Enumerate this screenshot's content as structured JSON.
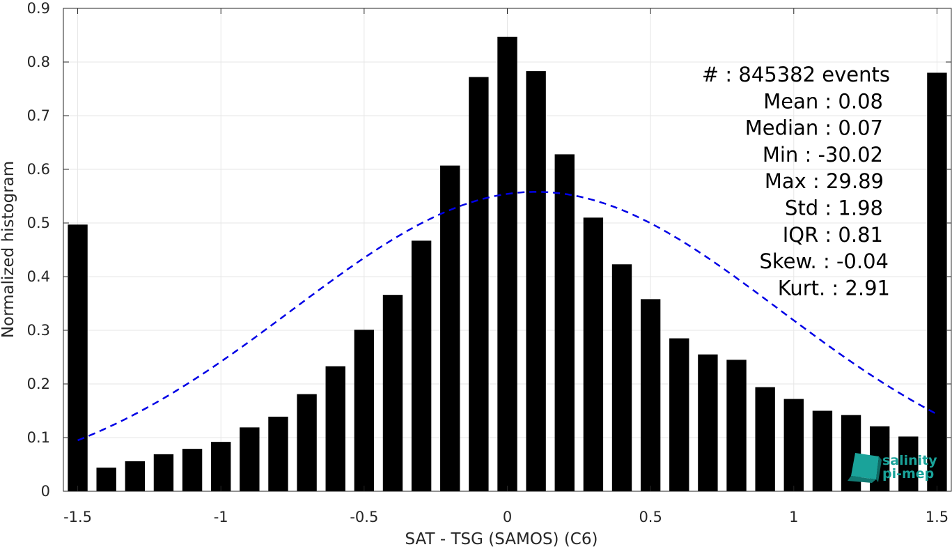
{
  "chart_data": {
    "type": "bar",
    "xlabel": "SAT - TSG (SAMOS) (C6)",
    "ylabel": "Normalized histogram",
    "xlim": [
      -1.55,
      1.55
    ],
    "ylim": [
      0,
      0.9
    ],
    "grid": true,
    "x_ticks": [
      "-1.5",
      "-1",
      "-0.5",
      "0",
      "0.5",
      "1",
      "1.5"
    ],
    "x_tick_values": [
      -1.5,
      -1,
      -0.5,
      0,
      0.5,
      1,
      1.5
    ],
    "y_ticks": [
      "0",
      "0.1",
      "0.2",
      "0.3",
      "0.4",
      "0.5",
      "0.6",
      "0.7",
      "0.8",
      "0.9"
    ],
    "y_tick_values": [
      0,
      0.1,
      0.2,
      0.3,
      0.4,
      0.5,
      0.6,
      0.7,
      0.8,
      0.9
    ],
    "bar_color": "#000000",
    "x": [
      -1.5,
      -1.4,
      -1.3,
      -1.2,
      -1.1,
      -1.0,
      -0.9,
      -0.8,
      -0.7,
      -0.6,
      -0.5,
      -0.4,
      -0.3,
      -0.2,
      -0.1,
      0.0,
      0.1,
      0.2,
      0.3,
      0.4,
      0.5,
      0.6,
      0.7,
      0.8,
      0.9,
      1.0,
      1.1,
      1.2,
      1.3,
      1.4,
      1.5
    ],
    "values": [
      0.497,
      0.044,
      0.056,
      0.069,
      0.079,
      0.092,
      0.119,
      0.139,
      0.181,
      0.233,
      0.301,
      0.366,
      0.467,
      0.607,
      0.772,
      0.847,
      0.783,
      0.628,
      0.51,
      0.423,
      0.358,
      0.285,
      0.255,
      0.245,
      0.194,
      0.172,
      0.15,
      0.142,
      0.121,
      0.102,
      0.78
    ],
    "fit_curve": {
      "style": "dashed",
      "color": "#0000e6",
      "mean": 0.1,
      "peak": 0.558,
      "sigma": 0.85
    },
    "stats": [
      {
        "label": "#  : 845382 events"
      },
      {
        "label": "Mean : 0.08"
      },
      {
        "label": "Median : 0.07"
      },
      {
        "label": "Min : -30.02"
      },
      {
        "label": "Max : 29.89"
      },
      {
        "label": "Std : 1.98"
      },
      {
        "label": "IQR : 0.81"
      },
      {
        "label": "Skew. : -0.04"
      },
      {
        "label": "Kurt. : 2.91"
      }
    ]
  },
  "logo": {
    "line1": "salinity",
    "line2": "pi-mep",
    "color": "#1aa39a"
  }
}
